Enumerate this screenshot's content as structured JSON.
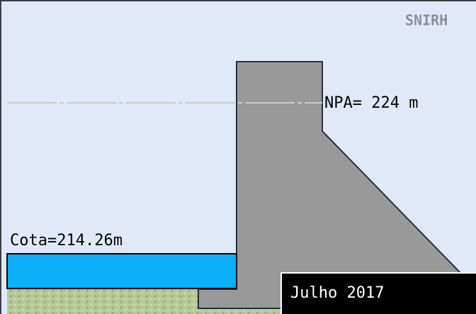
{
  "header": {
    "brand": "SNIRH"
  },
  "labels": {
    "npa": "NPA= 224 m",
    "cota": "Cota=214.26m"
  },
  "footer": {
    "date": "Julho 2017"
  }
}
